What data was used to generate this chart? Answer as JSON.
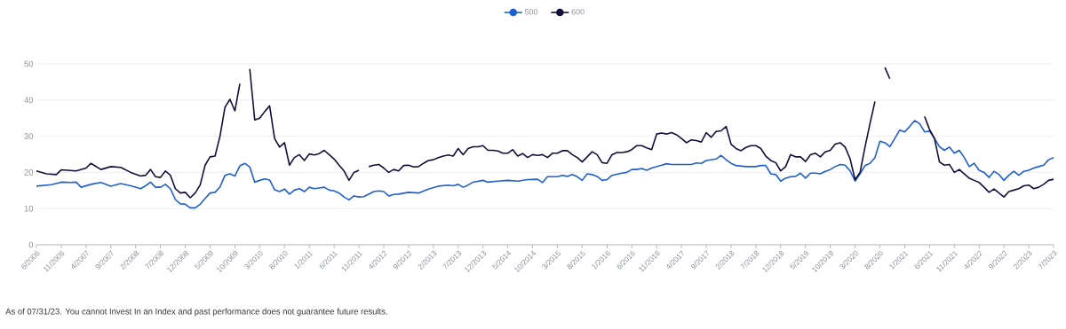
{
  "chart_data": {
    "type": "line",
    "annotations": [
      "As of 07/31/23. You cannot Invest In an Index and past performance does not guarantee future results."
    ],
    "xlim": [
      "2006-06",
      "2023-07"
    ],
    "xticks": [
      {
        "value": "2006-06",
        "label": "6/2006"
      },
      {
        "value": "2006-11",
        "label": "11/2006"
      },
      {
        "value": "2007-04",
        "label": "4/2007"
      },
      {
        "value": "2007-09",
        "label": "9/2007"
      },
      {
        "value": "2008-02",
        "label": "2/2008"
      },
      {
        "value": "2008-07",
        "label": "7/2008"
      },
      {
        "value": "2008-12",
        "label": "12/2008"
      },
      {
        "value": "2009-05",
        "label": "5/2009"
      },
      {
        "value": "2009-10",
        "label": "10/2009"
      },
      {
        "value": "2010-03",
        "label": "3/2010"
      },
      {
        "value": "2010-08",
        "label": "8/2010"
      },
      {
        "value": "2011-01",
        "label": "1/2011"
      },
      {
        "value": "2011-06",
        "label": "6/2011"
      },
      {
        "value": "2011-11",
        "label": "11/2011"
      },
      {
        "value": "2012-04",
        "label": "4/2012"
      },
      {
        "value": "2012-09",
        "label": "9/2012"
      },
      {
        "value": "2013-02",
        "label": "2/2013"
      },
      {
        "value": "2013-07",
        "label": "7/2013"
      },
      {
        "value": "2013-12",
        "label": "12/2013"
      },
      {
        "value": "2014-05",
        "label": "5/2014"
      },
      {
        "value": "2014-10",
        "label": "10/2014"
      },
      {
        "value": "2015-03",
        "label": "3/2015"
      },
      {
        "value": "2015-08",
        "label": "8/2015"
      },
      {
        "value": "2016-01",
        "label": "1/2016"
      },
      {
        "value": "2016-06",
        "label": "6/2016"
      },
      {
        "value": "2016-11",
        "label": "11/2016"
      },
      {
        "value": "2017-04",
        "label": "4/2017"
      },
      {
        "value": "2017-09",
        "label": "9/2017"
      },
      {
        "value": "2018-02",
        "label": "2/2018"
      },
      {
        "value": "2018-07",
        "label": "7/2018"
      },
      {
        "value": "2018-12",
        "label": "12/2018"
      },
      {
        "value": "2019-05",
        "label": "5/2019"
      },
      {
        "value": "2019-10",
        "label": "10/2019"
      },
      {
        "value": "2020-03",
        "label": "3/2020"
      },
      {
        "value": "2020-08",
        "label": "8/2020"
      },
      {
        "value": "2021-01",
        "label": "1/2021"
      },
      {
        "value": "2021-06",
        "label": "6/2021"
      },
      {
        "value": "2021-11",
        "label": "11/2021"
      },
      {
        "value": "2022-04",
        "label": "4/2022"
      },
      {
        "value": "2022-09",
        "label": "9/2022"
      },
      {
        "value": "2023-02",
        "label": "2/2023"
      },
      {
        "value": "2023-07",
        "label": "7/2023"
      }
    ],
    "ylim": [
      0,
      50
    ],
    "yticks": [
      0,
      10,
      20,
      30,
      40,
      50
    ],
    "grid": "y",
    "legend": "top",
    "series": [
      {
        "name": "500",
        "color": "#1f5fcf",
        "x": [
          "2006-06",
          "2006-09",
          "2006-11",
          "2007-01",
          "2007-02",
          "2007-03",
          "2007-05",
          "2007-07",
          "2007-09",
          "2007-11",
          "2008-01",
          "2008-03",
          "2008-04",
          "2008-05",
          "2008-06",
          "2008-07",
          "2008-08",
          "2008-09",
          "2008-10",
          "2008-11",
          "2008-12",
          "2009-01",
          "2009-02",
          "2009-03",
          "2009-04",
          "2009-05",
          "2009-06",
          "2009-07",
          "2009-08",
          "2009-09",
          "2009-10",
          "2009-11",
          "2009-12",
          "2010-01",
          "2010-02",
          "2010-03",
          "2010-04",
          "2010-05",
          "2010-06",
          "2010-07",
          "2010-08",
          "2010-09",
          "2010-10",
          "2010-11",
          "2010-12",
          "2011-01",
          "2011-02",
          "2011-03",
          "2011-04",
          "2011-05",
          "2011-06",
          "2011-07",
          "2011-08",
          "2011-09",
          "2011-10",
          "2011-11",
          "2011-12",
          "2012-01",
          "2012-02",
          "2012-03",
          "2012-04",
          "2012-05",
          "2012-06",
          "2012-07",
          "2012-09",
          "2012-11",
          "2013-01",
          "2013-03",
          "2013-05",
          "2013-06",
          "2013-07",
          "2013-08",
          "2013-09",
          "2013-10",
          "2013-12",
          "2014-01",
          "2014-03",
          "2014-05",
          "2014-07",
          "2014-09",
          "2014-11",
          "2014-12",
          "2015-01",
          "2015-03",
          "2015-04",
          "2015-05",
          "2015-06",
          "2015-07",
          "2015-08",
          "2015-09",
          "2015-10",
          "2015-11",
          "2015-12",
          "2016-01",
          "2016-02",
          "2016-04",
          "2016-05",
          "2016-06",
          "2016-07",
          "2016-08",
          "2016-09",
          "2016-10",
          "2016-12",
          "2017-01",
          "2017-02",
          "2017-04",
          "2017-06",
          "2017-07",
          "2017-08",
          "2017-09",
          "2017-11",
          "2017-12",
          "2018-01",
          "2018-02",
          "2018-03",
          "2018-05",
          "2018-07",
          "2018-08",
          "2018-09",
          "2018-10",
          "2018-11",
          "2018-12",
          "2019-01",
          "2019-02",
          "2019-03",
          "2019-04",
          "2019-05",
          "2019-06",
          "2019-07",
          "2019-08",
          "2019-09",
          "2019-10",
          "2019-11",
          "2019-12",
          "2020-01",
          "2020-02",
          "2020-03",
          "2020-04",
          "2020-05",
          "2020-06",
          "2020-07",
          "2020-08",
          "2020-09",
          "2020-10",
          "2020-11",
          "2020-12",
          "2021-01",
          "2021-02",
          "2021-03",
          "2021-04",
          "2021-05",
          "2021-06",
          "2021-07",
          "2021-08",
          "2021-09",
          "2021-10",
          "2021-11",
          "2021-12",
          "2022-01",
          "2022-02",
          "2022-03",
          "2022-04",
          "2022-05",
          "2022-06",
          "2022-07",
          "2022-08",
          "2022-09",
          "2022-10",
          "2022-11",
          "2022-12",
          "2023-01",
          "2023-02",
          "2023-03",
          "2023-04",
          "2023-05",
          "2023-06",
          "2023-07"
        ],
        "values": [
          16.2,
          16.6,
          17.3,
          17.2,
          17.3,
          15.9,
          16.7,
          17.2,
          16.2,
          16.9,
          16.3,
          15.5,
          16.3,
          17.3,
          15.9,
          15.9,
          16.7,
          15.5,
          12.5,
          11.3,
          11.2,
          10.2,
          10.2,
          11.2,
          12.8,
          14.3,
          14.5,
          16,
          19.2,
          19.6,
          19,
          21.8,
          22.5,
          21.5,
          17.3,
          17.8,
          18.2,
          17.9,
          15.2,
          14.7,
          15.4,
          14,
          15.1,
          15.5,
          14.7,
          15.9,
          15.5,
          15.7,
          15.9,
          15.1,
          14.9,
          14.3,
          13.2,
          12.4,
          13.5,
          13.2,
          13.3,
          14,
          14.7,
          14.9,
          14.7,
          13.5,
          13.9,
          14,
          14.5,
          14.3,
          15.4,
          16.2,
          16.5,
          16.3,
          16.7,
          15.9,
          16.5,
          17.3,
          17.8,
          17.3,
          17.6,
          17.8,
          17.6,
          18,
          18.1,
          17.2,
          18.8,
          18.8,
          19.2,
          18.9,
          19.4,
          18.8,
          17.8,
          19.6,
          19.4,
          18.9,
          17.8,
          18,
          19.2,
          19.8,
          20,
          20.8,
          20.8,
          21.1,
          20.6,
          21.2,
          22,
          22.4,
          22.2,
          22.2,
          22.2,
          22.6,
          22.5,
          23.3,
          23.7,
          24.7,
          23.5,
          22.5,
          21.9,
          21.6,
          21.6,
          21.9,
          21.9,
          19.6,
          19.4,
          17.6,
          18.4,
          18.8,
          18.9,
          19.8,
          18.4,
          19.8,
          19.8,
          19.6,
          20.3,
          20.8,
          21.6,
          22.2,
          22,
          20.4,
          17.6,
          19.6,
          21.9,
          22.5,
          24.1,
          28.6,
          28.2,
          27.1,
          29.4,
          31.7,
          31.2,
          32.7,
          34.3,
          33.5,
          31.2,
          31.4,
          29.4,
          27.1,
          26.1,
          27,
          25.3,
          26.1,
          24.1,
          21.6,
          22.5,
          20.6,
          20,
          18.6,
          20.3,
          19.4,
          17.8,
          19.2,
          20.3,
          19.2,
          20.3,
          20.6,
          21.2,
          21.6,
          22,
          23.5,
          24.1
        ]
      },
      {
        "name": "600",
        "color": "#10103a",
        "x": [
          "2006-06",
          "2006-08",
          "2006-10",
          "2006-11",
          "2007-02",
          "2007-04",
          "2007-05",
          "2007-07",
          "2007-09",
          "2007-11",
          "2008-01",
          "2008-03",
          "2008-04",
          "2008-05",
          "2008-06",
          "2008-07",
          "2008-08",
          "2008-09",
          "2008-10",
          "2008-11",
          "2008-12",
          "2009-01",
          "2009-02",
          "2009-03",
          "2009-04",
          "2009-05",
          "2009-06",
          "2009-07",
          "2009-08",
          "2009-09",
          "2009-10",
          "2009-11",
          "2009-12",
          "2010-01",
          "2010-02",
          "2010-03",
          "2010-04",
          "2010-05",
          "2010-06",
          "2010-07",
          "2010-08",
          "2010-09",
          "2010-10",
          "2010-11",
          "2010-12",
          "2011-01",
          "2011-02",
          "2011-03",
          "2011-04",
          "2011-05",
          "2011-06",
          "2011-07",
          "2011-08",
          "2011-09",
          "2011-10",
          "2011-11",
          "2011-12",
          "2012-01",
          "2012-02",
          "2012-03",
          "2012-04",
          "2012-05",
          "2012-06",
          "2012-07",
          "2012-08",
          "2012-09",
          "2012-10",
          "2012-11",
          "2012-12",
          "2013-01",
          "2013-02",
          "2013-03",
          "2013-04",
          "2013-05",
          "2013-06",
          "2013-07",
          "2013-08",
          "2013-09",
          "2013-10",
          "2013-11",
          "2013-12",
          "2014-01",
          "2014-02",
          "2014-03",
          "2014-04",
          "2014-05",
          "2014-06",
          "2014-07",
          "2014-08",
          "2014-09",
          "2014-10",
          "2014-11",
          "2014-12",
          "2015-01",
          "2015-02",
          "2015-03",
          "2015-04",
          "2015-05",
          "2015-06",
          "2015-07",
          "2015-08",
          "2015-09",
          "2015-10",
          "2015-11",
          "2015-12",
          "2016-01",
          "2016-02",
          "2016-03",
          "2016-04",
          "2016-05",
          "2016-06",
          "2016-07",
          "2016-08",
          "2016-09",
          "2016-10",
          "2016-11",
          "2016-12",
          "2017-01",
          "2017-02",
          "2017-03",
          "2017-04",
          "2017-05",
          "2017-06",
          "2017-07",
          "2017-08",
          "2017-09",
          "2017-10",
          "2017-11",
          "2017-12",
          "2018-01",
          "2018-02",
          "2018-03",
          "2018-04",
          "2018-05",
          "2018-06",
          "2018-07",
          "2018-08",
          "2018-09",
          "2018-10",
          "2018-11",
          "2018-12",
          "2019-01",
          "2019-02",
          "2019-03",
          "2019-04",
          "2019-05",
          "2019-06",
          "2019-07",
          "2019-08",
          "2019-09",
          "2019-10",
          "2019-11",
          "2019-12",
          "2020-01",
          "2020-02",
          "2020-03",
          "2020-04",
          "2020-05",
          "2020-06",
          "2020-07",
          "2020-08",
          "2020-09",
          "2020-10",
          "2020-11",
          "2021-05",
          "2021-06",
          "2021-07",
          "2021-08",
          "2021-09",
          "2021-10",
          "2021-11",
          "2021-12",
          "2022-01",
          "2022-02",
          "2022-03",
          "2022-04",
          "2022-05",
          "2022-06",
          "2022-07",
          "2022-08",
          "2022-09",
          "2022-10",
          "2022-11",
          "2022-12",
          "2023-01",
          "2023-02",
          "2023-03",
          "2023-04",
          "2023-05",
          "2023-06",
          "2023-07"
        ],
        "values": [
          20.4,
          19.6,
          19.4,
          20.7,
          20.4,
          21.2,
          22.5,
          20.8,
          21.6,
          21.4,
          20,
          19,
          19.2,
          20.8,
          18.8,
          18.6,
          20.4,
          19.2,
          15.5,
          14.3,
          14.5,
          13,
          14.3,
          16.5,
          22,
          24.3,
          24.5,
          30,
          38,
          40.2,
          37,
          44.5,
          null,
          48.6,
          34.5,
          35,
          36.8,
          38.4,
          29.4,
          27,
          28.2,
          22,
          24.1,
          24.9,
          23.3,
          25.1,
          24.8,
          25.2,
          26.1,
          24.9,
          23.7,
          22,
          20.4,
          17.8,
          20,
          20.6,
          null,
          21.6,
          22,
          22.2,
          21.2,
          20,
          20.8,
          20.4,
          21.9,
          22,
          21.5,
          21.6,
          22.5,
          23.3,
          23.5,
          24.1,
          24.5,
          24.8,
          24.5,
          26.6,
          24.9,
          26.6,
          27.1,
          27.1,
          27.4,
          26.1,
          26.1,
          25.9,
          25.3,
          25.3,
          26.3,
          24.5,
          25.2,
          24.1,
          24.9,
          24.7,
          24.9,
          24.1,
          25.3,
          25.3,
          26,
          26,
          24.9,
          24.1,
          22.9,
          24.3,
          25.7,
          24.9,
          22.7,
          22.5,
          24.9,
          25.5,
          25.5,
          25.7,
          26.3,
          27.4,
          27.4,
          26.8,
          26.3,
          30.6,
          30.9,
          30.6,
          31,
          30.4,
          29.4,
          28.2,
          29,
          28.8,
          28.4,
          31,
          29.7,
          31.3,
          31.5,
          32.7,
          27.8,
          26.6,
          26,
          26.9,
          27.4,
          27.4,
          26.6,
          24.5,
          23.3,
          22.7,
          20.4,
          21.6,
          24.9,
          24.3,
          24.3,
          23,
          24.9,
          25.3,
          24.3,
          25.7,
          26.1,
          27.8,
          28.2,
          27,
          23.7,
          18,
          20,
          27,
          33.5,
          39.6,
          null,
          49,
          45.9,
          null,
          35.5,
          31.9,
          29.4,
          22.9,
          22,
          22.2,
          20,
          20.8,
          19.6,
          18.4,
          17.8,
          17.2,
          15.9,
          14.5,
          15.4,
          14.3,
          13.2,
          14.7,
          15.1,
          15.5,
          16.3,
          16.5,
          15.5,
          15.9,
          16.7,
          17.8,
          18.1
        ]
      }
    ]
  }
}
